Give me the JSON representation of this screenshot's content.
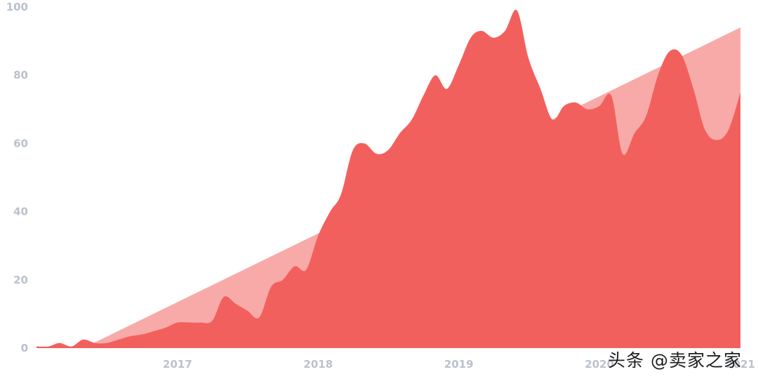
{
  "chart_data": {
    "type": "area",
    "x_axis": {
      "type": "date",
      "min": "2016-01-01",
      "max": "2021-01-01",
      "ticks": [
        "2017",
        "2018",
        "2019",
        "2020",
        "2021"
      ]
    },
    "y_axis": {
      "min": 0,
      "max": 100,
      "ticks": [
        "0",
        "20",
        "40",
        "60",
        "80",
        "100"
      ]
    },
    "grid": false,
    "legend": "none",
    "colors": {
      "trend": "#f8aaa8",
      "actual": "#f2605d"
    },
    "series": [
      {
        "role": "trend",
        "type": "line-area",
        "x": [
          "2016-01-01",
          "2016-05-01",
          "2021-01-01"
        ],
        "y": [
          0,
          0,
          94
        ]
      },
      {
        "role": "actual",
        "type": "area",
        "x": [
          "2016-01-01",
          "2016-02-01",
          "2016-03-01",
          "2016-04-01",
          "2016-05-01",
          "2016-06-01",
          "2016-07-01",
          "2016-08-01",
          "2016-09-01",
          "2016-10-01",
          "2016-11-01",
          "2016-12-01",
          "2017-01-01",
          "2017-02-01",
          "2017-03-01",
          "2017-04-01",
          "2017-05-01",
          "2017-06-01",
          "2017-07-01",
          "2017-08-01",
          "2017-09-01",
          "2017-10-01",
          "2017-11-01",
          "2017-12-01",
          "2018-01-01",
          "2018-02-01",
          "2018-03-01",
          "2018-04-01",
          "2018-05-01",
          "2018-06-01",
          "2018-07-01",
          "2018-08-01",
          "2018-09-01",
          "2018-10-01",
          "2018-11-01",
          "2018-12-01",
          "2019-01-01",
          "2019-02-01",
          "2019-03-01",
          "2019-04-01",
          "2019-05-01",
          "2019-06-01",
          "2019-07-01",
          "2019-08-01",
          "2019-09-01",
          "2019-10-01",
          "2019-11-01",
          "2019-12-01",
          "2020-01-01",
          "2020-02-01",
          "2020-03-01",
          "2020-04-01",
          "2020-05-01",
          "2020-06-01",
          "2020-07-01",
          "2020-08-01",
          "2020-09-01",
          "2020-10-01",
          "2020-11-01",
          "2020-12-01",
          "2021-01-01"
        ],
        "y": [
          0.5,
          0.5,
          1.5,
          0.5,
          2.5,
          1.5,
          1.5,
          2.5,
          3.5,
          4,
          5,
          6,
          7.5,
          7.5,
          7.5,
          8,
          15,
          13,
          11,
          9,
          18,
          20,
          24,
          23,
          33,
          40,
          45,
          58,
          60,
          57,
          58,
          63,
          67,
          74,
          80,
          76,
          83,
          91,
          93,
          91,
          93,
          99,
          85,
          76,
          67,
          71,
          72,
          70,
          71,
          74,
          57,
          63,
          68,
          80,
          87,
          86,
          76,
          64,
          61,
          64,
          75
        ]
      }
    ]
  },
  "watermark": {
    "text": "头条 @卖家之家"
  }
}
